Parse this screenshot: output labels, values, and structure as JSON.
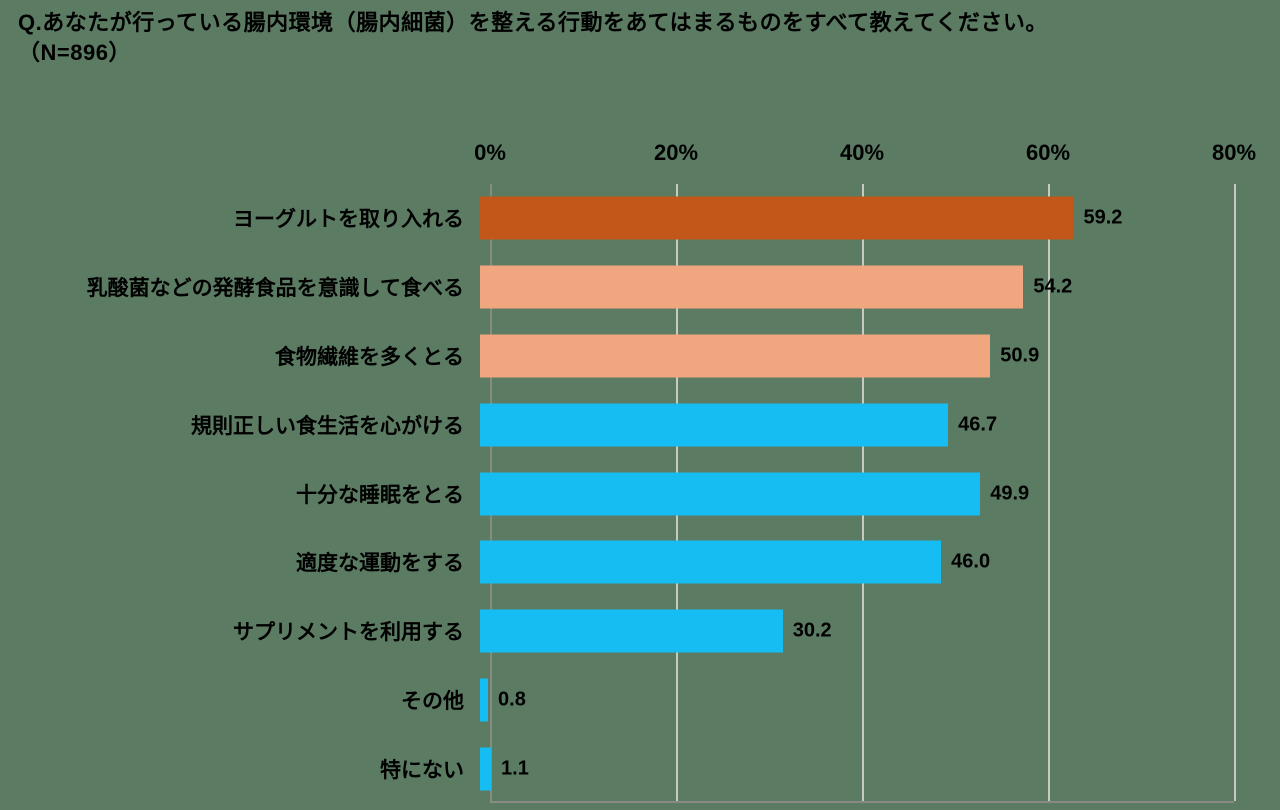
{
  "title": {
    "line1": "Q.あなたが行っている腸内環境（腸内細菌）を整える行動をあてはまるものをすべて教えてください。",
    "line2": "（N=896）"
  },
  "chart_data": {
    "type": "bar",
    "orientation": "horizontal",
    "title": "腸内環境（腸内細菌）を整える行動",
    "sample_size": "N=896",
    "categories": [
      "ヨーグルトを取り入れる",
      "乳酸菌などの発酵食品を意識して食べる",
      "食物繊維を多くとる",
      "規則正しい食生活を心がける",
      "十分な睡眠をとる",
      "適度な運動をする",
      "サプリメントを利用する",
      "その他",
      "特にない"
    ],
    "values": [
      59.2,
      54.2,
      50.9,
      46.7,
      49.9,
      46.0,
      30.2,
      0.8,
      1.1
    ],
    "value_labels": [
      "59.2",
      "54.2",
      "50.9",
      "46.7",
      "49.9",
      "46.0",
      "30.2",
      "0.8",
      "1.1"
    ],
    "bar_colors": [
      "#c2571a",
      "#f0a67e",
      "#f0a67e",
      "#16bdf2",
      "#16bdf2",
      "#16bdf2",
      "#16bdf2",
      "#16bdf2",
      "#16bdf2"
    ],
    "xlim": [
      0,
      80
    ],
    "x_ticks": [
      "0%",
      "20%",
      "40%",
      "60%",
      "80%"
    ],
    "x_tick_values": [
      0,
      20,
      40,
      60,
      80
    ],
    "grid": true,
    "legend": "none",
    "background_color": "#5b7b63",
    "gridline_color": "#c9c9c4",
    "axis_line_color": "#8a8a85"
  }
}
